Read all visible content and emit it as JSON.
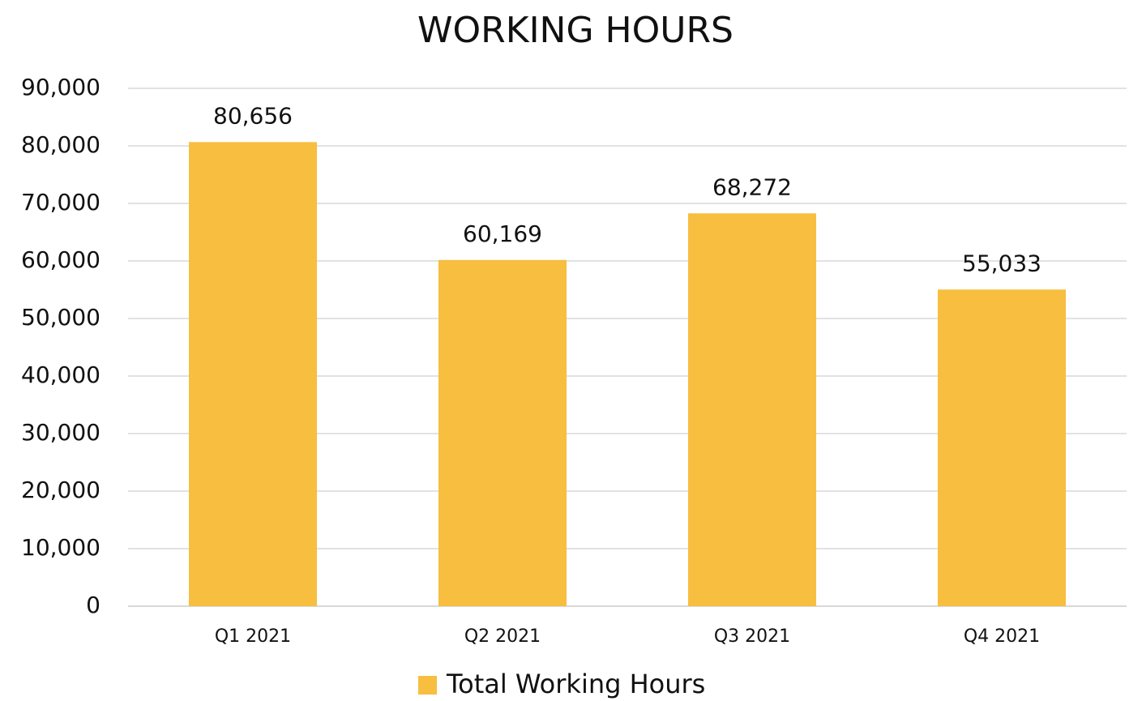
{
  "chart_data": {
    "type": "bar",
    "title": "WORKING HOURS",
    "categories": [
      "Q1 2021",
      "Q2 2021",
      "Q3 2021",
      "Q4 2021"
    ],
    "series": [
      {
        "name": "Total Working Hours",
        "color": "#f7be3f",
        "values": [
          80656,
          60169,
          68272,
          55033
        ],
        "value_labels": [
          "80,656",
          "60,169",
          "68,272",
          "55,033"
        ]
      }
    ],
    "ylim": [
      0,
      90000
    ],
    "yticks": [
      0,
      {
        "value": 10000,
        "label": "10,000"
      },
      {
        "value": 20000,
        "label": "20,000"
      },
      {
        "value": 30000,
        "label": "30,000"
      },
      {
        "value": 40000,
        "label": "40,000"
      },
      {
        "value": 50000,
        "label": "50,000"
      },
      {
        "value": 60000,
        "label": "60,000"
      },
      {
        "value": 70000,
        "label": "70,000"
      },
      {
        "value": 80000,
        "label": "80,000"
      },
      {
        "value": 90000,
        "label": "90,000"
      }
    ],
    "grid": true,
    "legend": "bottom"
  }
}
